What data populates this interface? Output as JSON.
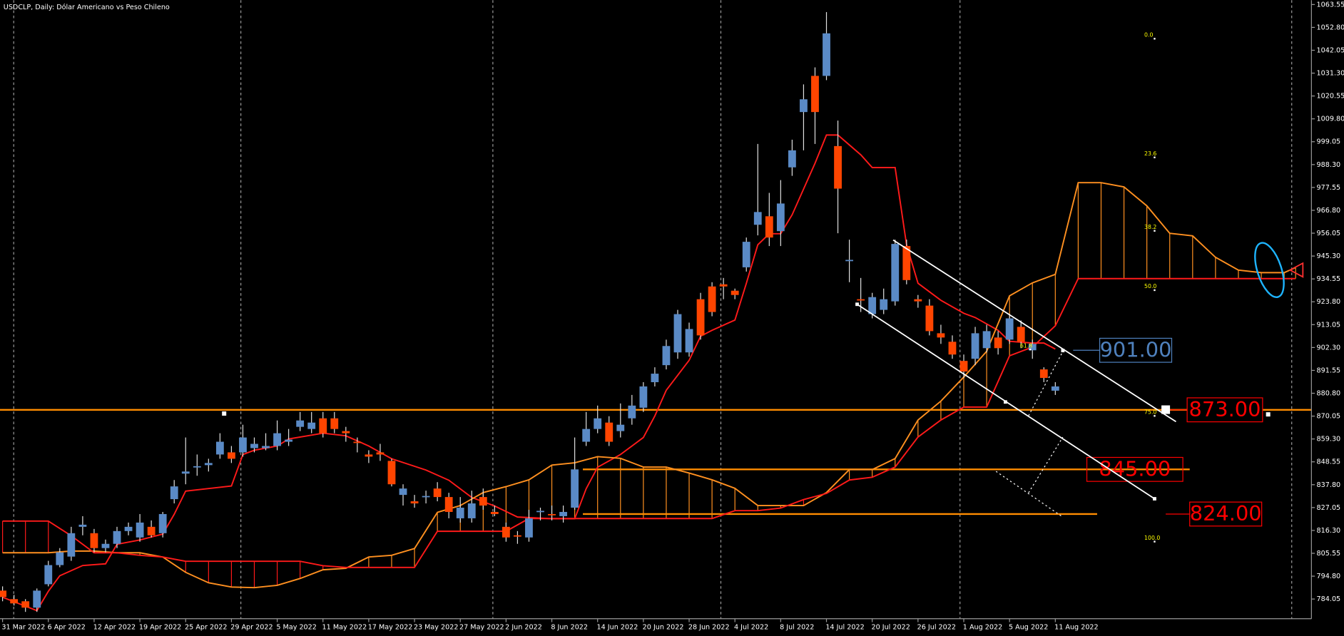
{
  "chart_data": {
    "type": "candlestick",
    "title": "USDCLP, Daily:  Dólar Americano vs Peso Chileno",
    "categories": [
      "31 Mar 2022",
      null,
      null,
      null,
      "6 Apr 2022",
      null,
      null,
      null,
      "12 Apr 2022",
      null,
      null,
      null,
      "19 Apr 2022",
      null,
      null,
      null,
      "25 Apr 2022",
      null,
      null,
      null,
      "29 Apr 2022",
      null,
      null,
      null,
      "5 May 2022",
      null,
      null,
      null,
      "11 May 2022",
      null,
      null,
      null,
      "17 May 2022",
      null,
      null,
      null,
      "23 May 2022",
      null,
      null,
      null,
      "27 May 2022",
      null,
      null,
      null,
      "2 Jun 2022",
      null,
      null,
      null,
      "8 Jun 2022",
      null,
      null,
      null,
      "14 Jun 2022",
      null,
      null,
      null,
      "20 Jun 2022",
      null,
      null,
      null,
      "28 Jun 2022",
      null,
      null,
      null,
      "4 Jul 2022",
      null,
      null,
      null,
      "8 Jul 2022",
      null,
      null,
      null,
      "14 Jul 2022",
      null,
      null,
      null,
      "20 Jul 2022",
      null,
      null,
      null,
      "26 Jul 2022",
      null,
      null,
      null,
      "1 Aug 2022",
      null,
      null,
      null,
      "5 Aug 2022",
      null,
      null,
      null,
      "11 Aug 2022"
    ],
    "open": [
      788,
      784,
      783,
      780,
      791,
      800,
      804,
      818,
      815,
      808,
      810,
      816,
      813,
      818,
      815,
      831,
      843,
      846,
      847,
      852,
      853,
      853,
      855,
      855,
      856,
      858,
      865,
      864,
      869,
      869,
      863,
      858,
      852,
      853,
      849,
      833,
      830,
      832,
      836,
      832,
      822,
      822,
      832,
      825,
      818,
      814,
      813,
      825,
      824,
      823,
      827,
      858,
      864,
      867,
      863,
      869,
      874,
      886,
      894,
      900,
      900,
      925,
      931,
      932,
      929,
      940,
      960,
      964,
      957,
      987,
      1013,
      1030,
      1030,
      997,
      943,
      925,
      918,
      920,
      924,
      950,
      925,
      922,
      909,
      905,
      896,
      897,
      902,
      907,
      906,
      912,
      901,
      892,
      882
    ],
    "high": [
      790,
      786,
      784,
      789,
      802,
      808,
      818,
      823,
      817,
      812,
      818,
      820,
      824,
      821,
      825,
      840,
      860,
      852,
      850,
      862,
      856,
      866,
      860,
      862,
      868,
      864,
      872,
      872,
      872,
      872,
      865,
      860,
      854,
      857,
      850,
      838,
      833,
      835,
      839,
      834,
      832,
      835,
      836,
      828,
      820,
      816,
      826,
      827,
      828,
      828,
      860,
      872,
      875,
      870,
      876,
      880,
      886,
      893,
      906,
      920,
      914,
      928,
      933,
      935,
      930,
      954,
      998,
      975,
      981,
      1000,
      1026,
      1034,
      1060,
      1009,
      953,
      935,
      928,
      930,
      953,
      953,
      927,
      925,
      913,
      908,
      899,
      912,
      913,
      910,
      918,
      915,
      906,
      893,
      886
    ],
    "low": [
      783,
      781,
      778,
      778,
      790,
      799,
      802,
      814,
      806,
      806,
      808,
      814,
      811,
      813,
      813,
      829,
      838,
      842,
      844,
      850,
      848,
      851,
      853,
      854,
      854,
      856,
      863,
      862,
      860,
      862,
      858,
      853,
      848,
      849,
      837,
      828,
      827,
      829,
      830,
      822,
      820,
      820,
      826,
      823,
      811,
      810,
      811,
      821,
      821,
      820,
      826,
      856,
      862,
      856,
      860,
      866,
      872,
      884,
      892,
      897,
      898,
      906,
      917,
      925,
      925,
      938,
      955,
      950,
      950,
      983,
      995,
      998,
      1028,
      956,
      933,
      919,
      916,
      918,
      922,
      932,
      921,
      908,
      904,
      897,
      888,
      894,
      900,
      899,
      904,
      902,
      897,
      886,
      880
    ],
    "close": [
      785,
      782,
      780,
      788,
      800,
      806,
      815,
      819,
      808,
      810,
      816,
      818,
      820,
      814,
      824,
      837,
      844,
      846.5,
      848,
      858,
      850,
      860,
      857,
      856,
      862,
      859,
      868,
      867,
      862,
      864,
      862,
      857.5,
      851,
      852,
      838,
      836,
      829,
      832.5,
      832,
      825,
      827,
      829,
      828,
      824,
      813,
      813.5,
      822,
      825.5,
      823.5,
      825,
      845,
      864,
      869,
      858,
      866,
      875,
      884,
      890,
      903,
      918,
      911,
      908,
      919,
      931,
      927,
      952,
      966,
      954,
      970,
      995,
      1019,
      1013,
      1050,
      977,
      943.5,
      924.5,
      926,
      925,
      951,
      934,
      924,
      910,
      907,
      899,
      891,
      909,
      910,
      902,
      916,
      905,
      904,
      888,
      884
    ],
    "up_color": "#5a8ac6",
    "down_color": "#ff4500",
    "wick_color": "#e0e0e0",
    "lines": [
      {
        "color": "#ff1a1a",
        "x": [
          0,
          3,
          4,
          5,
          7,
          9,
          10,
          12,
          14,
          15,
          16,
          18,
          20,
          21,
          22,
          24,
          25,
          28,
          30,
          32,
          34,
          37,
          39,
          41,
          43,
          45,
          48,
          50,
          51,
          52,
          54,
          56,
          57,
          58,
          60,
          61,
          62,
          64,
          65,
          66,
          67,
          68,
          69,
          70,
          71,
          72,
          73,
          75,
          76,
          78,
          79,
          80,
          82,
          84,
          85,
          87,
          88,
          90,
          91,
          92
        ],
        "values": [
          784.9,
          778.6,
          787.7,
          795,
          799.8,
          800.6,
          809.8,
          811.8,
          814.6,
          823.9,
          834.8,
          836,
          837.2,
          852,
          854,
          856,
          859.3,
          862,
          860.8,
          856,
          850,
          844.7,
          839.9,
          831.8,
          827.8,
          822.6,
          821.8,
          821.8,
          835.9,
          846,
          852,
          860,
          870.1,
          882.2,
          896.3,
          907.6,
          910.4,
          915.2,
          932.5,
          950.6,
          955.8,
          955.8,
          964.7,
          976.8,
          988.9,
          1002.2,
          1002.2,
          992.9,
          986.9,
          986.9,
          950.6,
          932.5,
          924.5,
          918.4,
          916.4,
          910.4,
          905.2,
          904.4,
          904.4,
          901.6
        ]
      },
      {
        "color": "#ff9020",
        "x": [
          0,
          2,
          4,
          6,
          8,
          10,
          12,
          14,
          16,
          18,
          20,
          22,
          24,
          26,
          28,
          30,
          32,
          34,
          36,
          38,
          40,
          42,
          44,
          46,
          48,
          50,
          52,
          54,
          56,
          58,
          60,
          62,
          64,
          66,
          68,
          70,
          72,
          74,
          76,
          78,
          80,
          82,
          84,
          86,
          88,
          90,
          92,
          94,
          96,
          98,
          100,
          102,
          104,
          106,
          108,
          110,
          112,
          113
        ],
        "values": [
          805.8,
          805.8,
          805.8,
          806.6,
          806.6,
          805.8,
          805.8,
          803.8,
          796.6,
          791.7,
          789.7,
          789.4,
          790.5,
          793.7,
          797.8,
          798.5,
          803.8,
          804.6,
          807.8,
          824.8,
          828.0,
          834.1,
          836.9,
          840.1,
          847.0,
          848.1,
          851.0,
          850.2,
          846.1,
          846.1,
          843.3,
          840.1,
          836.1,
          828.0,
          828.0,
          828.0,
          834.1,
          844.9,
          844.9,
          850.1,
          868.2,
          877.1,
          888.4,
          900.5,
          926.6,
          932.7,
          936.7,
          979.8,
          979.8,
          977.8,
          968.9,
          956.0,
          954.8,
          944.7,
          938.7,
          937.5,
          937.5,
          939.9
        ]
      },
      {
        "color": "#ff1a1a",
        "x": [
          0,
          2,
          4,
          6,
          8,
          10,
          12,
          14,
          16,
          18,
          20,
          22,
          24,
          26,
          28,
          30,
          32,
          34,
          36,
          38,
          40,
          42,
          44,
          46,
          48,
          50,
          52,
          54,
          56,
          58,
          60,
          62,
          64,
          66,
          68,
          70,
          72,
          74,
          76,
          78,
          80,
          82,
          84,
          86,
          88,
          90,
          92,
          94,
          96,
          98,
          100,
          102,
          104,
          106,
          108,
          110,
          112,
          113
        ],
        "values": [
          820.7,
          820.7,
          820.7,
          813.8,
          805.8,
          805.8,
          804.6,
          803.8,
          801.8,
          801.8,
          801.8,
          801.8,
          801.8,
          801.8,
          799.7,
          798.9,
          798.9,
          798.9,
          798.9,
          815.9,
          815.9,
          815.9,
          815.9,
          821.9,
          821.9,
          821.9,
          821.9,
          821.9,
          821.9,
          821.9,
          821.9,
          821.9,
          825.6,
          825.6,
          826.8,
          830.8,
          833.7,
          840.0,
          841.3,
          846.1,
          860.2,
          868.2,
          874.3,
          874.3,
          898.4,
          902.5,
          912.5,
          934.7,
          934.7,
          934.7,
          934.7,
          934.7,
          934.7,
          934.7,
          934.7,
          934.7,
          934.7,
          934.7
        ]
      }
    ],
    "levels": [
      {
        "value": 901,
        "label": "901.00",
        "color": "#4f81bd"
      },
      {
        "value": 873,
        "label": "873.00",
        "color": "#ff0000"
      },
      {
        "value": 845,
        "label": "845.00",
        "color": "#ff0000"
      },
      {
        "value": 824,
        "label": "824.00",
        "color": "#ff0000"
      }
    ],
    "level_line_color": "#ff8c00",
    "fib": {
      "color": "#ffff00",
      "levels": [
        {
          "value": 0,
          "label": "0.0"
        },
        23.6,
        38.2,
        {
          "value": 50,
          "label": "50.0"
        },
        61.8,
        {
          "value": 75,
          "label": "75.0"
        },
        {
          "value": 100,
          "label": "100.0"
        }
      ]
    },
    "ylim": [
      774.8,
      1065.6
    ],
    "yticks": [
      1063.55,
      {
        "value": 1052.8,
        "label": "1052.80"
      },
      1042.05,
      {
        "value": 1031.3,
        "label": "1031.30"
      },
      1020.55,
      {
        "value": 1009.8,
        "label": "1009.80"
      },
      999.05,
      {
        "value": 988.3,
        "label": "988.30"
      },
      977.55,
      {
        "value": 966.8,
        "label": "966.80"
      },
      956.05,
      {
        "value": 945.3,
        "label": "945.30"
      },
      934.55,
      {
        "value": 923.8,
        "label": "923.80"
      },
      913.05,
      {
        "value": 902.3,
        "label": "902.30"
      },
      891.55,
      {
        "value": 880.8,
        "label": "880.80"
      },
      870.05,
      {
        "value": 859.3,
        "label": "859.30"
      },
      848.55,
      {
        "value": 837.8,
        "label": "837.80"
      },
      827.05,
      {
        "value": 816.3,
        "label": "816.30"
      },
      805.55,
      {
        "value": 794.8,
        "label": "794.80"
      },
      784.05
    ]
  }
}
